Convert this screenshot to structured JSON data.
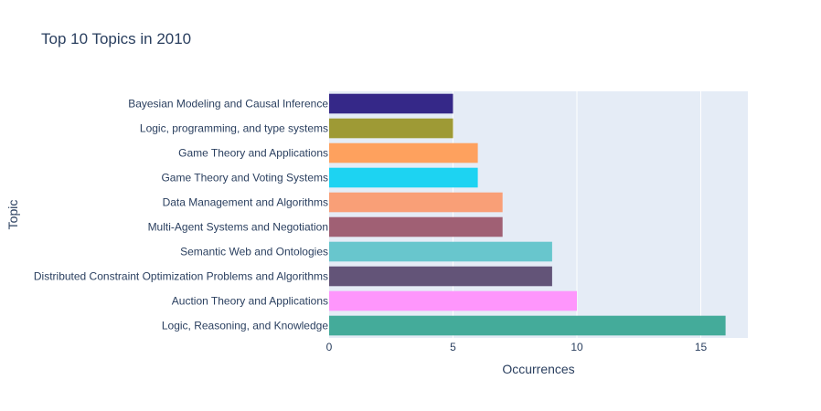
{
  "chart_data": {
    "type": "bar",
    "orientation": "horizontal",
    "title": "Top 10 Topics in 2010",
    "xlabel": "Occurrences",
    "ylabel": "Topic",
    "xlim": [
      0,
      16.9
    ],
    "x_ticks": [
      0,
      5,
      10,
      15
    ],
    "grid": true,
    "categories": [
      "Bayesian Modeling and Causal Inference",
      "Logic, programming, and type systems",
      "Game Theory and Applications",
      "Game Theory and Voting Systems",
      "Data Management and Algorithms",
      "Multi-Agent Systems and Negotiation",
      "Semantic Web and Ontologies",
      "Distributed Constraint Optimization Problems and Algorithms",
      "Auction Theory and Applications",
      "Logic, Reasoning, and Knowledge"
    ],
    "values": [
      5,
      5,
      6,
      6,
      7,
      7,
      9,
      9,
      10,
      16
    ],
    "colors": [
      "#352888",
      "#9e9a35",
      "#fea15e",
      "#1dd3f2",
      "#f99f77",
      "#a06074",
      "#68c6cd",
      "#635478",
      "#fe96fc",
      "#44ab9a"
    ]
  },
  "style": {
    "plot_background": "#e5ecf6",
    "grid_color": "#ffffff",
    "text_color": "#2a3f5f"
  }
}
